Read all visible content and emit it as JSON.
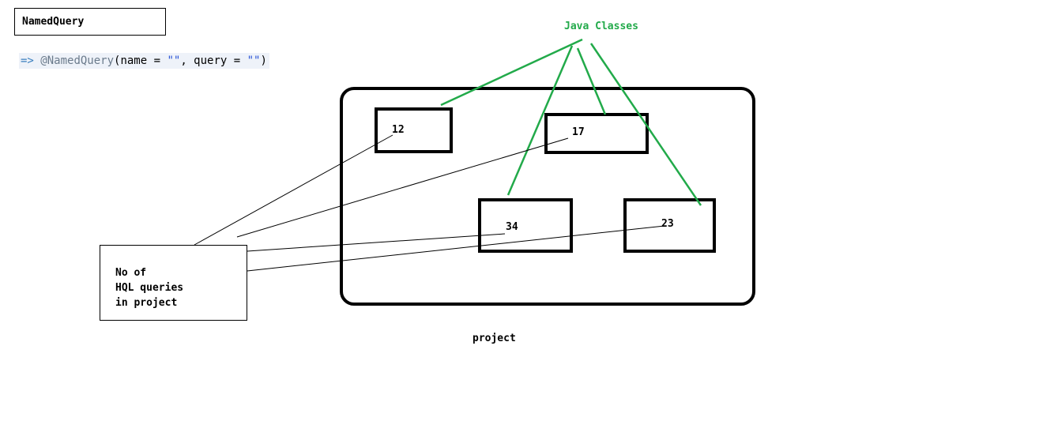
{
  "title": "NamedQuery",
  "code": {
    "arrow": "=>",
    "annotation": "@NamedQuery",
    "open": "(name = ",
    "name_value": "\"\"",
    "mid": ", query = ",
    "query_value": "\"\"",
    "close": ")"
  },
  "java_classes_label": "Java Classes",
  "class_boxes": [
    "12",
    "17",
    "34",
    "23"
  ],
  "note": {
    "line1": "No of",
    "line2": "HQL queries",
    "line3": "in project"
  },
  "project_label": "project",
  "colors": {
    "green": "#22aa4a",
    "black": "#000000"
  }
}
